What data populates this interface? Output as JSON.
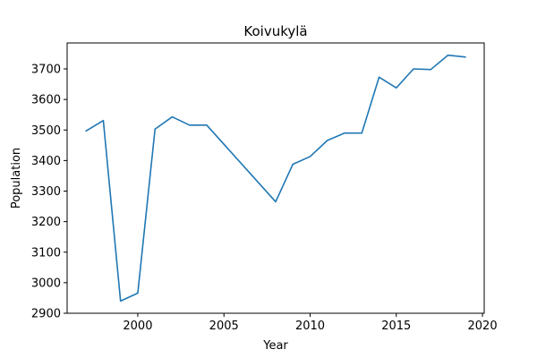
{
  "chart_data": {
    "type": "line",
    "title": "Koivukylä",
    "xlabel": "Year",
    "ylabel": "Population",
    "xlim": [
      1995.9,
      2020.1
    ],
    "ylim": [
      2900,
      3785
    ],
    "xticks": [
      2000,
      2005,
      2010,
      2015,
      2020
    ],
    "yticks": [
      2900,
      3000,
      3100,
      3200,
      3300,
      3400,
      3500,
      3600,
      3700
    ],
    "grid": false,
    "line_color": "#1f77b4",
    "series": [
      {
        "x": [
          1997,
          1998,
          1999,
          2000,
          2001,
          2002,
          2003,
          2004,
          2008,
          2009,
          2010,
          2011,
          2012,
          2013,
          2014,
          2015,
          2016,
          2017,
          2018,
          2019
        ],
        "values": [
          3497,
          3531,
          2940,
          2966,
          3503,
          3543,
          3516,
          3516,
          3265,
          3388,
          3413,
          3466,
          3490,
          3490,
          3673,
          3638,
          3700,
          3698,
          3745,
          3739
        ]
      }
    ]
  }
}
